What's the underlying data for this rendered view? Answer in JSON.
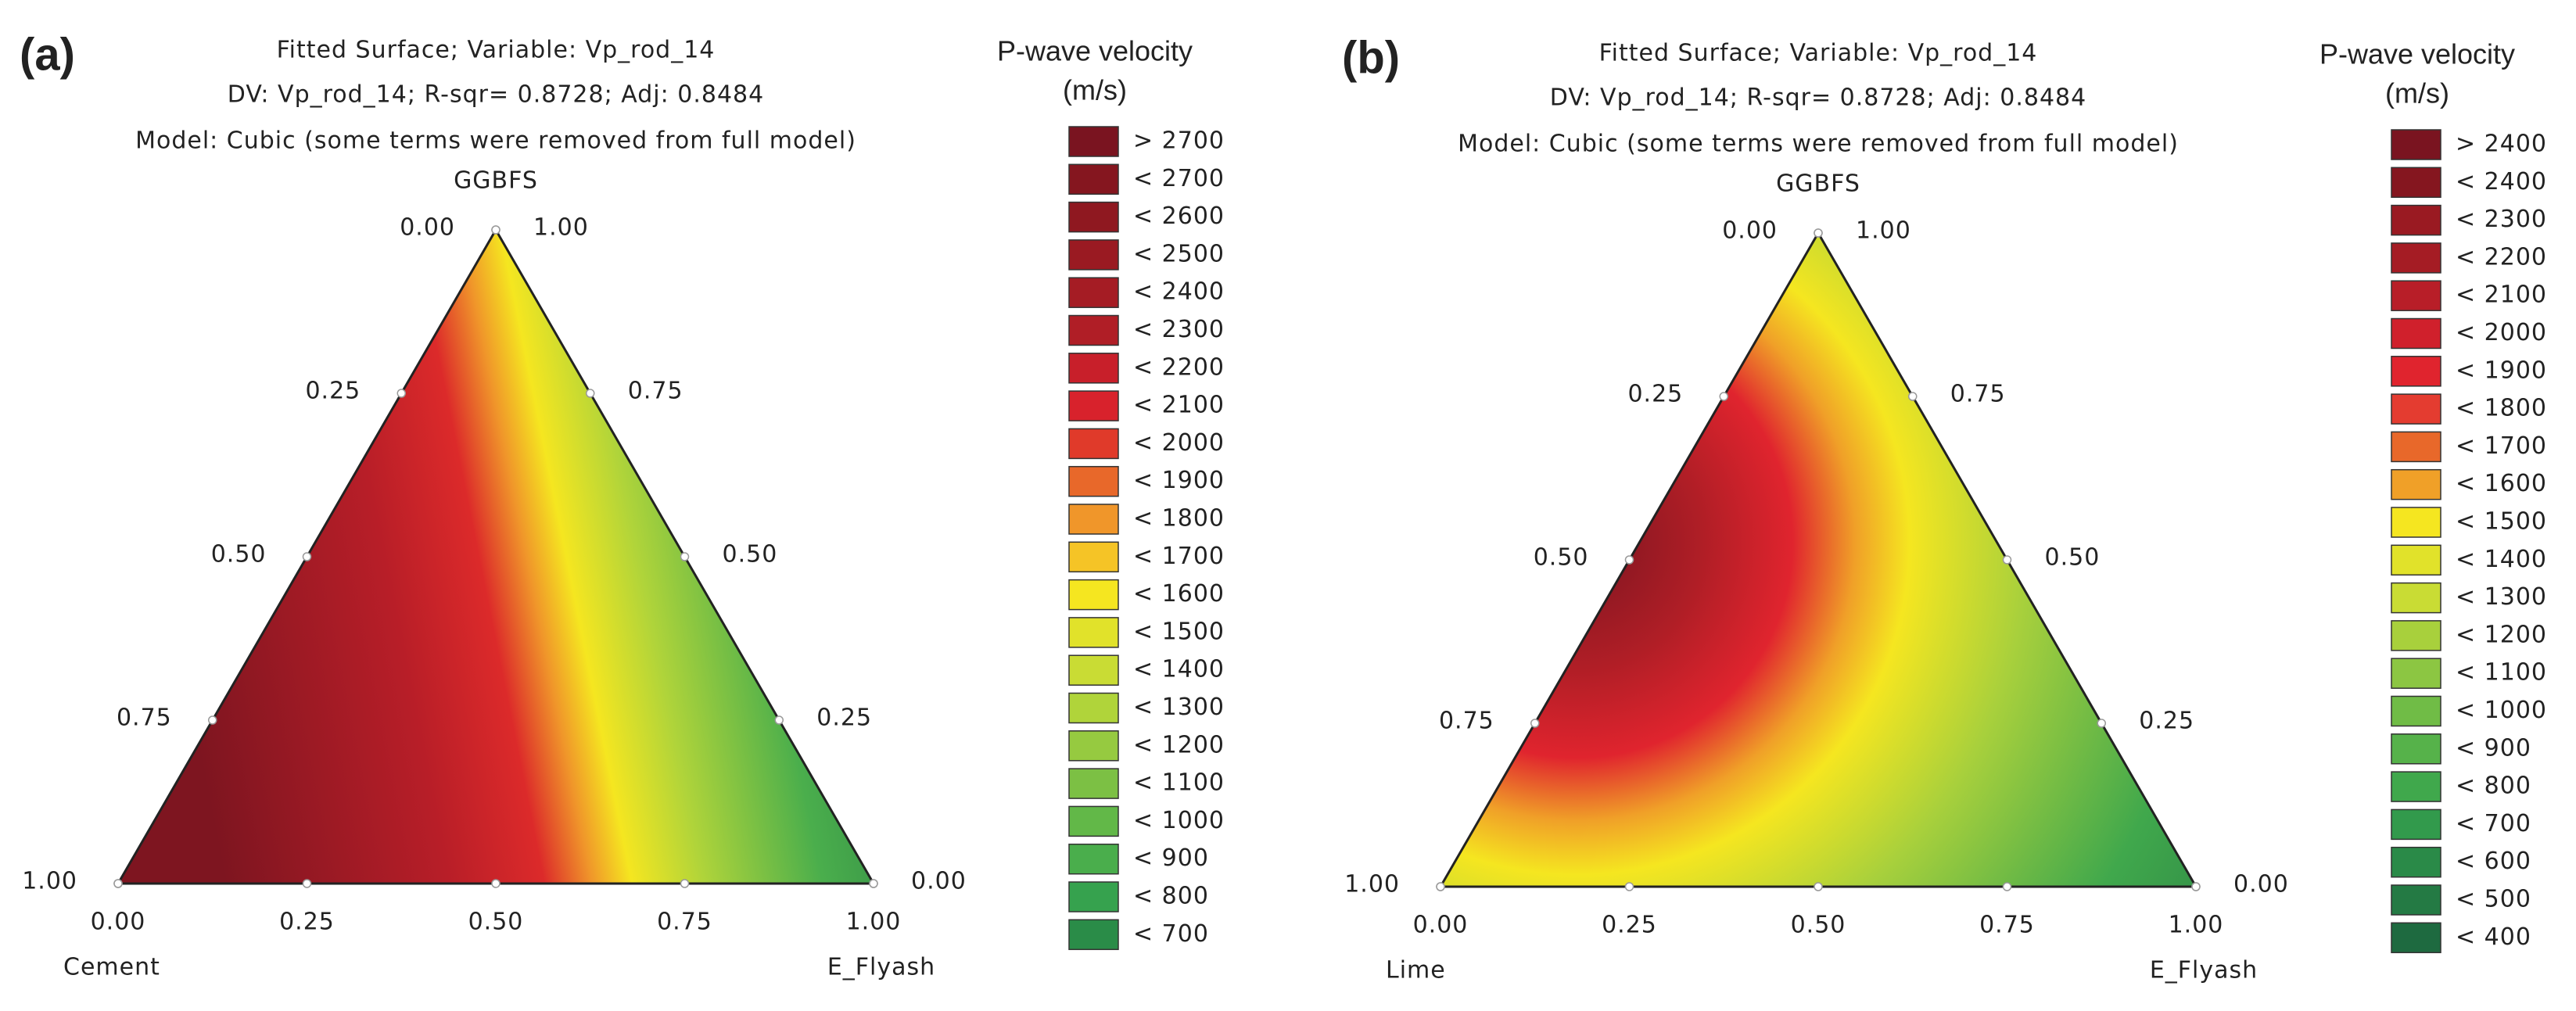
{
  "chart_data": [
    {
      "type": "ternary-contour",
      "panel_label": "(a)",
      "title": "Fitted Surface; Variable: Vp_rod_14",
      "subtitle": "DV: Vp_rod_14; R-sqr= 0.8728; Adj: 0.8484",
      "model": "Model: Cubic    (some terms were removed from full model)",
      "top_label": "GGBFS",
      "left_label": "Cement",
      "right_label": "E_Flyash",
      "left_ticks": [
        {
          "value": 0,
          "label": "0.00"
        },
        {
          "value": 0.25,
          "label": "0.25"
        },
        {
          "value": 0.5,
          "label": "0.50"
        },
        {
          "value": 0.75,
          "label": "0.75"
        },
        {
          "value": 1,
          "label": "1.00"
        }
      ],
      "right_ticks": [
        {
          "value": 1,
          "label": "1.00"
        },
        {
          "value": 0.75,
          "label": "0.75"
        },
        {
          "value": 0.5,
          "label": "0.50"
        },
        {
          "value": 0.25,
          "label": "0.25"
        },
        {
          "value": 0,
          "label": "0.00"
        }
      ],
      "bottom_ticks": [
        {
          "value": 0,
          "label": "0.00"
        },
        {
          "value": 0.25,
          "label": "0.25"
        },
        {
          "value": 0.5,
          "label": "0.50"
        },
        {
          "value": 0.75,
          "label": "0.75"
        },
        {
          "value": 1,
          "label": "1.00"
        }
      ],
      "legend_title": "P-wave velocity",
      "legend_unit": "(m/s)",
      "legend": [
        {
          "label": "> 2700",
          "color": "#7a1420"
        },
        {
          "label": "< 2700",
          "color": "#85161f"
        },
        {
          "label": "< 2600",
          "color": "#8f1820"
        },
        {
          "label": "< 2500",
          "color": "#9a1a22"
        },
        {
          "label": "< 2400",
          "color": "#a51c24"
        },
        {
          "label": "< 2300",
          "color": "#b01e26"
        },
        {
          "label": "< 2200",
          "color": "#c81f2a"
        },
        {
          "label": "< 2100",
          "color": "#d8222c"
        },
        {
          "label": "< 2000",
          "color": "#e03a2a"
        },
        {
          "label": "< 1900",
          "color": "#e8682a"
        },
        {
          "label": "< 1800",
          "color": "#f0962a"
        },
        {
          "label": "< 1700",
          "color": "#f5c426"
        },
        {
          "label": "< 1600",
          "color": "#f5e620"
        },
        {
          "label": "< 1500",
          "color": "#e1e22a"
        },
        {
          "label": "< 1400",
          "color": "#c9dc34"
        },
        {
          "label": "< 1300",
          "color": "#b0d43a"
        },
        {
          "label": "< 1200",
          "color": "#96ca40"
        },
        {
          "label": "< 1100",
          "color": "#7cc044"
        },
        {
          "label": "< 1000",
          "color": "#62b848"
        },
        {
          "label": "< 900",
          "color": "#4aae4c"
        },
        {
          "label": "< 800",
          "color": "#36a24e"
        },
        {
          "label": "< 700",
          "color": "#2a8c48"
        }
      ]
    },
    {
      "type": "ternary-contour",
      "panel_label": "(b)",
      "title": "Fitted Surface; Variable: Vp_rod_14",
      "subtitle": "DV: Vp_rod_14; R-sqr= 0.8728; Adj: 0.8484",
      "model": "Model: Cubic    (some terms were removed from full model)",
      "top_label": "GGBFS",
      "left_label": "Lime",
      "right_label": "E_Flyash",
      "left_ticks": [
        {
          "value": 0,
          "label": "0.00"
        },
        {
          "value": 0.25,
          "label": "0.25"
        },
        {
          "value": 0.5,
          "label": "0.50"
        },
        {
          "value": 0.75,
          "label": "0.75"
        },
        {
          "value": 1,
          "label": "1.00"
        }
      ],
      "right_ticks": [
        {
          "value": 1,
          "label": "1.00"
        },
        {
          "value": 0.75,
          "label": "0.75"
        },
        {
          "value": 0.5,
          "label": "0.50"
        },
        {
          "value": 0.25,
          "label": "0.25"
        },
        {
          "value": 0,
          "label": "0.00"
        }
      ],
      "bottom_ticks": [
        {
          "value": 0,
          "label": "0.00"
        },
        {
          "value": 0.25,
          "label": "0.25"
        },
        {
          "value": 0.5,
          "label": "0.50"
        },
        {
          "value": 0.75,
          "label": "0.75"
        },
        {
          "value": 1,
          "label": "1.00"
        }
      ],
      "legend_title": "P-wave velocity",
      "legend_unit": "(m/s)",
      "legend": [
        {
          "label": "> 2400",
          "color": "#7a1420"
        },
        {
          "label": "< 2400",
          "color": "#85161f"
        },
        {
          "label": "< 2300",
          "color": "#9a1a22"
        },
        {
          "label": "< 2200",
          "color": "#a51c24"
        },
        {
          "label": "< 2100",
          "color": "#b81e28"
        },
        {
          "label": "< 2000",
          "color": "#d0202c"
        },
        {
          "label": "< 1900",
          "color": "#e0242e"
        },
        {
          "label": "< 1800",
          "color": "#e43c30"
        },
        {
          "label": "< 1700",
          "color": "#e8682a"
        },
        {
          "label": "< 1600",
          "color": "#f0a028"
        },
        {
          "label": "< 1500",
          "color": "#f5e620"
        },
        {
          "label": "< 1400",
          "color": "#e1e22a"
        },
        {
          "label": "< 1300",
          "color": "#c9dc34"
        },
        {
          "label": "< 1200",
          "color": "#a8d03c"
        },
        {
          "label": "< 1100",
          "color": "#8cc642"
        },
        {
          "label": "< 1000",
          "color": "#70bc46"
        },
        {
          "label": "< 900",
          "color": "#56b24a"
        },
        {
          "label": "< 800",
          "color": "#40a84c"
        },
        {
          "label": "< 700",
          "color": "#329a4c"
        },
        {
          "label": "< 600",
          "color": "#2a8a48"
        },
        {
          "label": "< 500",
          "color": "#247a44"
        },
        {
          "label": "< 400",
          "color": "#1e6a40"
        }
      ]
    }
  ]
}
